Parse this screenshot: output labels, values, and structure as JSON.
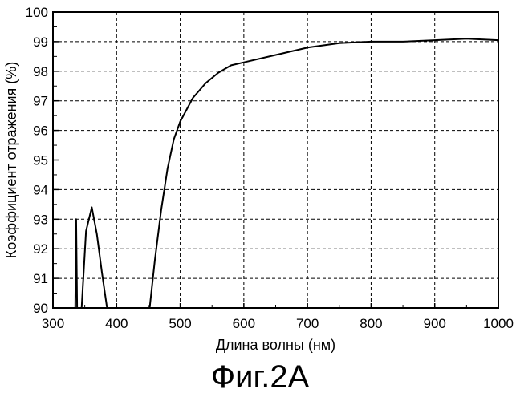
{
  "chart_data": {
    "type": "line",
    "xlabel": "Длина волны (нм)",
    "ylabel": "Коэффициент отражения (%)",
    "xlim": [
      300,
      1000
    ],
    "ylim": [
      90,
      100
    ],
    "x_ticks": [
      "300",
      "400",
      "500",
      "600",
      "700",
      "800",
      "900",
      "1000"
    ],
    "y_ticks": [
      "90",
      "91",
      "92",
      "93",
      "94",
      "95",
      "96",
      "97",
      "98",
      "99",
      "100"
    ],
    "grid": true,
    "grid_style": "dashed",
    "series": [
      {
        "segments": [
          [
            [
              335,
              90
            ],
            [
              336.5,
              93
            ],
            [
              338,
              90
            ]
          ],
          [
            [
              345,
              90
            ],
            [
              352,
              92.6
            ],
            [
              361,
              93.4
            ],
            [
              369,
              92.5
            ],
            [
              377,
              91.2
            ],
            [
              385,
              90
            ]
          ],
          [
            [
              452,
              90
            ],
            [
              460,
              91.6
            ],
            [
              470,
              93.3
            ],
            [
              480,
              94.7
            ],
            [
              490,
              95.7
            ],
            [
              500,
              96.3
            ],
            [
              520,
              97.1
            ],
            [
              540,
              97.6
            ],
            [
              560,
              97.95
            ],
            [
              580,
              98.2
            ],
            [
              600,
              98.3
            ],
            [
              650,
              98.55
            ],
            [
              700,
              98.8
            ],
            [
              750,
              98.95
            ],
            [
              800,
              99.0
            ],
            [
              850,
              99.0
            ],
            [
              900,
              99.05
            ],
            [
              950,
              99.1
            ],
            [
              1000,
              99.05
            ]
          ]
        ]
      }
    ]
  },
  "figure_caption": "Фиг.2А"
}
